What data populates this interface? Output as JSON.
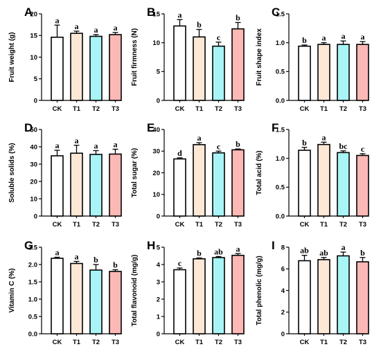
{
  "chart_data": [
    {
      "type": "bar",
      "panel": "A",
      "ylabel": "Fruit weight (g)",
      "categories": [
        "CK",
        "T1",
        "T2",
        "T3"
      ],
      "ylim": [
        0,
        20
      ],
      "yticks": [
        "0",
        "5",
        "10",
        "15",
        "20"
      ],
      "values": [
        14.6,
        15.5,
        14.8,
        15.2
      ],
      "errors": [
        2.8,
        0.5,
        0.4,
        0.5
      ],
      "significance": [
        "a",
        "a",
        "a",
        "a"
      ]
    },
    {
      "type": "bar",
      "panel": "B",
      "ylabel": "Fruit firmness (N)",
      "categories": [
        "CK",
        "T1",
        "T2",
        "T3"
      ],
      "ylim": [
        0,
        15
      ],
      "yticks": [
        "0",
        "5",
        "10",
        "15"
      ],
      "values": [
        12.9,
        11.0,
        9.4,
        12.4
      ],
      "errors": [
        1.1,
        1.3,
        0.7,
        1.1
      ],
      "significance": [
        "a",
        "b",
        "c",
        "b"
      ]
    },
    {
      "type": "bar",
      "panel": "C",
      "ylabel": "Fruit shape index",
      "categories": [
        "CK",
        "T1",
        "T2",
        "T3"
      ],
      "ylim": [
        0,
        1.5
      ],
      "yticks": [
        "0.0",
        "0.5",
        "1.0",
        "1.5"
      ],
      "values": [
        0.94,
        0.97,
        0.97,
        0.97
      ],
      "errors": [
        0.02,
        0.03,
        0.06,
        0.05
      ],
      "significance": [
        "b",
        "a",
        "a",
        "a"
      ]
    },
    {
      "type": "bar",
      "panel": "D",
      "ylabel": "Soluble solids (%)",
      "categories": [
        "CK",
        "T1",
        "T2",
        "T3"
      ],
      "ylim": [
        0,
        50
      ],
      "yticks": [
        "0",
        "10",
        "20",
        "30",
        "40",
        "50"
      ],
      "values": [
        34.8,
        36.3,
        35.6,
        35.8
      ],
      "errors": [
        3.2,
        4.6,
        2.2,
        2.8
      ],
      "significance": [
        "a",
        "a",
        "a",
        "a"
      ]
    },
    {
      "type": "bar",
      "panel": "E",
      "ylabel": "Total sugar (%)",
      "categories": [
        "CK",
        "T1",
        "T2",
        "T3"
      ],
      "ylim": [
        0,
        40
      ],
      "yticks": [
        "0",
        "10",
        "20",
        "30",
        "40"
      ],
      "values": [
        26.4,
        33.0,
        29.2,
        30.6
      ],
      "errors": [
        0.5,
        0.9,
        0.8,
        0.4
      ],
      "significance": [
        "d",
        "a",
        "c",
        "b"
      ]
    },
    {
      "type": "bar",
      "panel": "F",
      "ylabel": "Total acid  (%)",
      "categories": [
        "CK",
        "T1",
        "T2",
        "T3"
      ],
      "ylim": [
        0,
        1.5
      ],
      "yticks": [
        "0.0",
        "0.5",
        "1.0",
        "1.5"
      ],
      "values": [
        1.14,
        1.24,
        1.1,
        1.05
      ],
      "errors": [
        0.05,
        0.04,
        0.03,
        0.03
      ],
      "significance": [
        "b",
        "a",
        "bc",
        "c"
      ]
    },
    {
      "type": "bar",
      "panel": "G",
      "ylabel": "Vitamin C  (%)",
      "categories": [
        "CK",
        "T1",
        "T2",
        "T3"
      ],
      "ylim": [
        0,
        2.5
      ],
      "yticks": [
        "0.0",
        "0.5",
        "1.0",
        "1.5",
        "2.0",
        "2.5"
      ],
      "values": [
        2.18,
        2.03,
        1.84,
        1.8
      ],
      "errors": [
        0.03,
        0.06,
        0.16,
        0.05
      ],
      "significance": [
        "a",
        "a",
        "b",
        "b"
      ]
    },
    {
      "type": "bar",
      "panel": "H",
      "ylabel": "Total flavonoid (mg/g)",
      "categories": [
        "CK",
        "T1",
        "T2",
        "T3"
      ],
      "ylim": [
        0,
        5
      ],
      "yticks": [
        "0",
        "1",
        "2",
        "3",
        "4",
        "5"
      ],
      "values": [
        3.7,
        4.33,
        4.4,
        4.53
      ],
      "errors": [
        0.1,
        0.05,
        0.06,
        0.1
      ],
      "significance": [
        "c",
        "b",
        "ab",
        "a"
      ]
    },
    {
      "type": "bar",
      "panel": "I",
      "ylabel": "Total phenolic (mg/g)",
      "categories": [
        "CK",
        "T1",
        "T2",
        "T3"
      ],
      "ylim": [
        0,
        8
      ],
      "yticks": [
        "0",
        "2",
        "4",
        "6",
        "8"
      ],
      "values": [
        6.75,
        6.85,
        7.2,
        6.65
      ],
      "errors": [
        0.5,
        0.2,
        0.35,
        0.4
      ],
      "significance": [
        "ab",
        "ab",
        "a",
        "b"
      ]
    }
  ],
  "colors": {
    "fills": [
      "#ffffff",
      "#fde8d6",
      "#a8f4f6",
      "#fbb8b5"
    ],
    "stroke": "#000000"
  }
}
